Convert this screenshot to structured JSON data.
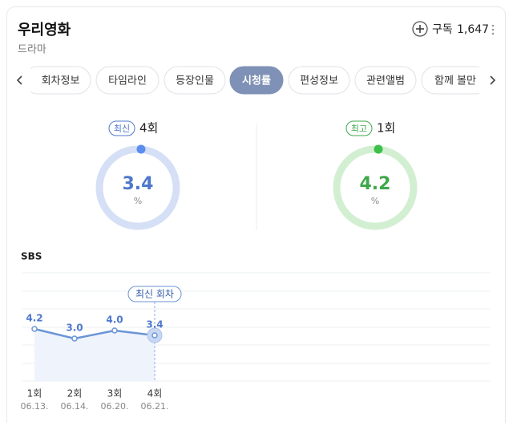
{
  "header": {
    "title": "우리영화",
    "subtitle": "드라마",
    "subscribe": "구독",
    "subscribers": "1,647"
  },
  "tabs": {
    "items": [
      "회차정보",
      "타임라인",
      "등장인물",
      "시청률",
      "편성정보",
      "관련앨범",
      "함께 볼만"
    ],
    "active": 3
  },
  "summary": [
    {
      "badge": "최신",
      "episode": "4회",
      "value": "3.4",
      "unit": "%",
      "color": "#4f78cc",
      "ring": "#d5e0f6",
      "dot": "#5b8def"
    },
    {
      "badge": "최고",
      "episode": "1회",
      "value": "4.2",
      "unit": "%",
      "color": "#3fa84a",
      "ring": "#d3efd2",
      "dot": "#3dbf4a"
    }
  ],
  "chart_data": {
    "type": "line",
    "title": "SBS",
    "annotation": "최신 회차",
    "categories": [
      "1회",
      "2회",
      "3회",
      "4회"
    ],
    "dates": [
      "06.13.",
      "06.14.",
      "06.20.",
      "06.21."
    ],
    "series": [
      {
        "name": "시청률",
        "color": "#6b95d6",
        "values": [
          4.2,
          3.0,
          4.0,
          3.4
        ],
        "value_labels": [
          "4.2",
          "3.0",
          "4.0",
          "3.4"
        ]
      }
    ],
    "ylim": [
      -2.3,
      11.2
    ]
  }
}
